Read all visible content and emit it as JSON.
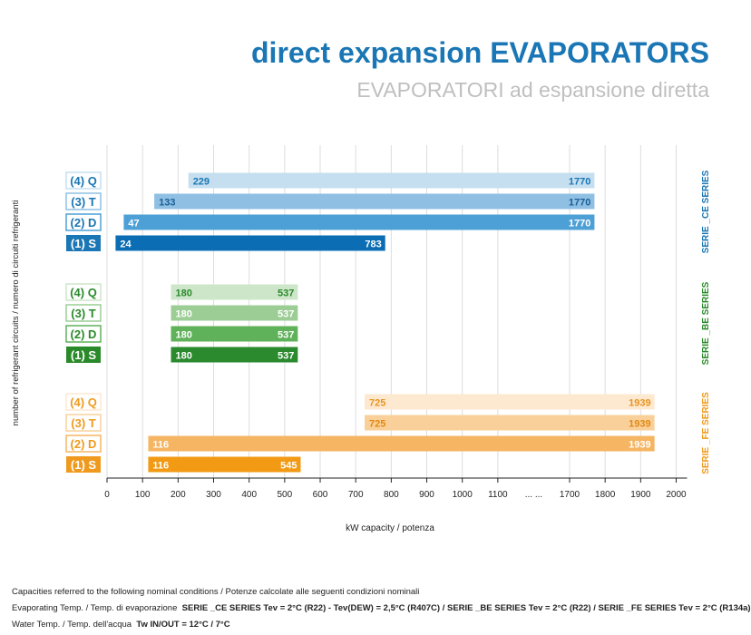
{
  "header": {
    "title": "direct expansion EVAPORATORS",
    "subtitle": "EVAPORATORI ad espansione diretta"
  },
  "chart_data": {
    "type": "bar",
    "orientation": "horizontal",
    "xlabel": "kW capacity / potenza",
    "ylabel": "number of refrigerant circuits / numero di circuiti refrigeranti",
    "axis_break": {
      "after": 1100,
      "before": 1700,
      "label": "... ..."
    },
    "xticks": [
      0,
      100,
      200,
      300,
      400,
      500,
      600,
      700,
      800,
      900,
      1000,
      1100,
      1700,
      1800,
      1900,
      2000
    ],
    "grid": "vertical",
    "groups": [
      {
        "series_label": "SERIE _CE SERIES",
        "color": "#1a76b4",
        "bars": [
          {
            "label": "(4) Q",
            "min": 229,
            "max": 1770,
            "min_label": "229",
            "max_label": "1770",
            "fill": "#c6dff0",
            "text": "#1a76b4"
          },
          {
            "label": "(3) T",
            "min": 133,
            "max": 1770,
            "min_label": "133",
            "max_label": "1770",
            "fill": "#8fc0e3",
            "text": "#1a5f96"
          },
          {
            "label": "(2) D",
            "min": 47,
            "max": 1770,
            "min_label": "47",
            "max_label": "1770",
            "fill": "#4da0d6",
            "text": "#ffffff"
          },
          {
            "label": "(1) S",
            "min": 24,
            "max": 783,
            "min_label": "24",
            "max_label": "783",
            "fill": "#0b6db3",
            "text": "#ffffff"
          }
        ]
      },
      {
        "series_label": "SERIE _BE SERIES",
        "color": "#2a8a2a",
        "bars": [
          {
            "label": "(4) Q",
            "min": 180,
            "max": 537,
            "min_label": "180",
            "max_label": "537",
            "fill": "#cde6c9",
            "text": "#2a8a2a"
          },
          {
            "label": "(3) T",
            "min": 180,
            "max": 537,
            "min_label": "180",
            "max_label": "537",
            "fill": "#9ccd95",
            "text": "#ffffff"
          },
          {
            "label": "(2) D",
            "min": 180,
            "max": 537,
            "min_label": "180",
            "max_label": "537",
            "fill": "#5fb25a",
            "text": "#ffffff"
          },
          {
            "label": "(1) S",
            "min": 180,
            "max": 537,
            "min_label": "180",
            "max_label": "537",
            "fill": "#2b8a2e",
            "text": "#ffffff"
          }
        ]
      },
      {
        "series_label": "SERIE _FE SERIES",
        "color": "#ef9a1e",
        "bars": [
          {
            "label": "(4) Q",
            "min": 725,
            "max": 1939,
            "min_label": "725",
            "max_label": "1939",
            "fill": "#fde9cf",
            "text": "#e99421"
          },
          {
            "label": "(3) T",
            "min": 725,
            "max": 1939,
            "min_label": "725",
            "max_label": "1939",
            "fill": "#fad09a",
            "text": "#e08a14"
          },
          {
            "label": "(2) D",
            "min": 116,
            "max": 1939,
            "min_label": "116",
            "max_label": "1939",
            "fill": "#f6b563",
            "text": "#ffffff"
          },
          {
            "label": "(1) S",
            "min": 116,
            "max": 545,
            "min_label": "116",
            "max_label": "545",
            "fill": "#f29a14",
            "text": "#ffffff"
          }
        ]
      }
    ]
  },
  "footnote": {
    "line1": "Capacities referred to the following nominal conditions / Potenze calcolate alle seguenti condizioni nominali",
    "line2_prefix": "Evaporating Temp. / Temp. di evaporazione",
    "line2_bold": "SERIE _CE SERIES Tev = 2°C (R22) - Tev(DEW) = 2,5°C (R407C) / SERIE _BE SERIES Tev = 2°C (R22) / SERIE _FE SERIES Tev = 2°C (R134a)",
    "line3_prefix": "Water Temp. / Temp. dell'acqua",
    "line3_bold": "Tw IN/OUT = 12°C / 7°C"
  }
}
